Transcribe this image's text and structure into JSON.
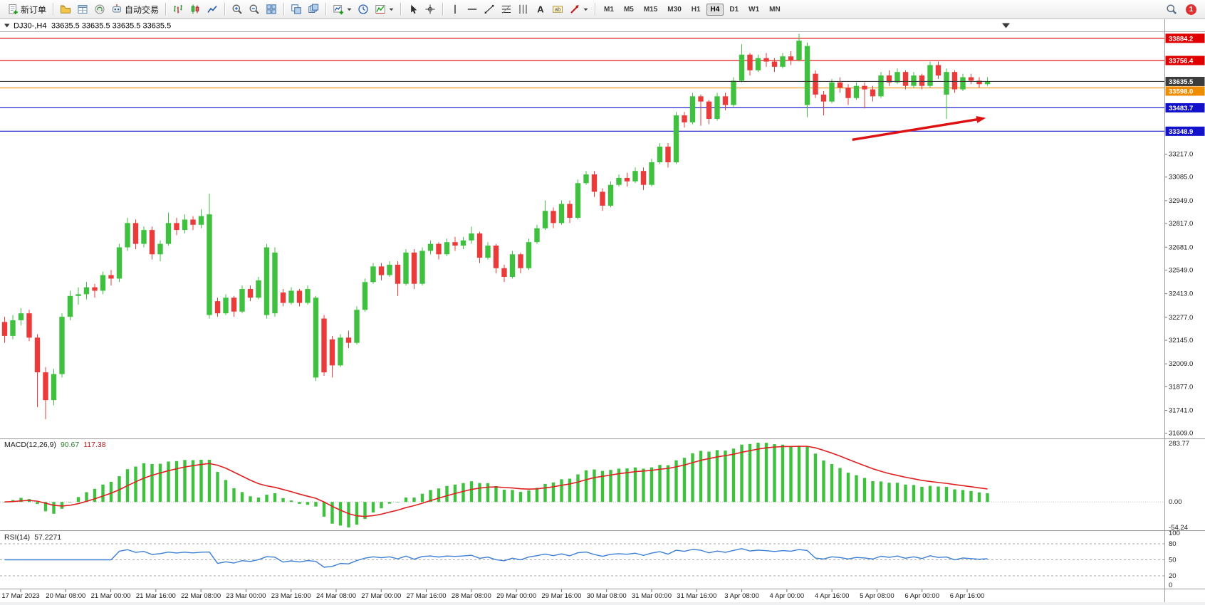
{
  "toolbar": {
    "groups": [
      {
        "items": [
          {
            "name": "new-order-button",
            "icon": "new-order",
            "label": "新订单"
          }
        ]
      },
      {
        "items": [
          {
            "name": "profiles-button",
            "icon": "profiles"
          },
          {
            "name": "data-window-button",
            "icon": "data-window"
          },
          {
            "name": "community-button",
            "icon": "community"
          },
          {
            "name": "algo-trading-button",
            "icon": "algo-trading",
            "label": "自动交易"
          }
        ]
      },
      {
        "items": [
          {
            "name": "bar-chart-button",
            "icon": "chart-bars"
          },
          {
            "name": "candle-chart-button",
            "icon": "chart-candles"
          },
          {
            "name": "line-chart-button",
            "icon": "chart-line"
          }
        ]
      },
      {
        "items": [
          {
            "name": "zoom-in-button",
            "icon": "zoom-in"
          },
          {
            "name": "zoom-out-button",
            "icon": "zoom-out"
          },
          {
            "name": "tile-windows-button",
            "icon": "tile-windows"
          }
        ]
      },
      {
        "items": [
          {
            "name": "arrange-windows-button",
            "icon": "arrange-windows"
          },
          {
            "name": "cascade-windows-button",
            "icon": "cascade-windows"
          }
        ]
      },
      {
        "items": [
          {
            "name": "new-chart-button",
            "icon": "new-chart",
            "dropdown": true
          },
          {
            "name": "period-button",
            "icon": "clock"
          },
          {
            "name": "indicators-button",
            "icon": "indicators",
            "dropdown": true
          }
        ]
      },
      {
        "items": [
          {
            "name": "cursor-button",
            "icon": "cursor"
          },
          {
            "name": "crosshair-button",
            "icon": "crosshair"
          }
        ]
      },
      {
        "items": [
          {
            "name": "vertical-line-button",
            "icon": "vertical-line"
          },
          {
            "name": "horizontal-line-button",
            "icon": "horizontal-line"
          },
          {
            "name": "trend-line-button",
            "icon": "trend-line"
          },
          {
            "name": "fibonacci-button",
            "icon": "fibonacci"
          },
          {
            "name": "cycle-lines-button",
            "icon": "cycle-lines"
          },
          {
            "name": "text-button",
            "icon": "text"
          },
          {
            "name": "text-label-button",
            "icon": "text-label"
          },
          {
            "name": "arrow-tools-button",
            "icon": "arrow-tools",
            "dropdown": true
          }
        ]
      }
    ],
    "timeframes": [
      "M1",
      "M5",
      "M15",
      "M30",
      "H1",
      "H4",
      "D1",
      "W1",
      "MN"
    ],
    "active_timeframe": "H4",
    "notification_count": "1"
  },
  "chart": {
    "symbol_period": "DJ30-,H4",
    "ohlc": "33635.5 33635.5 33635.5 33635.5"
  },
  "chart_data": {
    "type": "candlestick",
    "symbol": "DJ30-",
    "timeframe": "H4",
    "colors": {
      "up": "#3fc13f",
      "down": "#eb3a3a",
      "bid_line": "#3c3c3c"
    },
    "levels": [
      {
        "price": 33884.2,
        "label": "33884.2",
        "color": "#e00000"
      },
      {
        "price": 33756.4,
        "label": "33756.4",
        "color": "#e00000"
      },
      {
        "price": 33635.5,
        "label": "33635.5",
        "color": "#3c3c3c",
        "bid": true
      },
      {
        "price": 33598.0,
        "label": "33598.0",
        "color": "#f08c00"
      },
      {
        "price": 33483.7,
        "label": "33483.7",
        "color": "#1212cc"
      },
      {
        "price": 33348.9,
        "label": "33348.9",
        "color": "#1212cc"
      }
    ],
    "y_ticks": [
      "33217.0",
      "33085.0",
      "32949.0",
      "32817.0",
      "32681.0",
      "32549.0",
      "32413.0",
      "32277.0",
      "32145.0",
      "32009.0",
      "31877.0",
      "31741.0",
      "31609.0"
    ],
    "x_labels": [
      "17 Mar 2023",
      "20 Mar 08:00",
      "21 Mar 00:00",
      "21 Mar 16:00",
      "22 Mar 08:00",
      "23 Mar 00:00",
      "23 Mar 16:00",
      "24 Mar 08:00",
      "27 Mar 00:00",
      "27 Mar 16:00",
      "28 Mar 08:00",
      "29 Mar 00:00",
      "29 Mar 16:00",
      "30 Mar 08:00",
      "31 Mar 00:00",
      "31 Mar 16:00",
      "3 Apr 08:00",
      "4 Apr 00:00",
      "4 Apr 16:00",
      "5 Apr 08:00",
      "6 Apr 00:00",
      "6 Apr 16:00"
    ],
    "candles": [
      [
        32250,
        32280,
        32130,
        32170
      ],
      [
        32170,
        32290,
        32150,
        32260
      ],
      [
        32260,
        32330,
        32230,
        32300
      ],
      [
        32300,
        32320,
        32140,
        32160
      ],
      [
        32160,
        32180,
        31760,
        31960
      ],
      [
        31960,
        31990,
        31690,
        31800
      ],
      [
        31800,
        31980,
        31770,
        31950
      ],
      [
        31950,
        32300,
        31930,
        32280
      ],
      [
        32280,
        32430,
        32260,
        32400
      ],
      [
        32400,
        32450,
        32350,
        32410
      ],
      [
        32410,
        32480,
        32380,
        32450
      ],
      [
        32450,
        32470,
        32390,
        32430
      ],
      [
        32430,
        32540,
        32410,
        32520
      ],
      [
        32520,
        32550,
        32460,
        32500
      ],
      [
        32500,
        32700,
        32480,
        32680
      ],
      [
        32680,
        32850,
        32660,
        32820
      ],
      [
        32820,
        32840,
        32670,
        32700
      ],
      [
        32700,
        32800,
        32680,
        32780
      ],
      [
        32780,
        32800,
        32610,
        32640
      ],
      [
        32640,
        32720,
        32600,
        32700
      ],
      [
        32700,
        32880,
        32690,
        32820
      ],
      [
        32820,
        32850,
        32750,
        32780
      ],
      [
        32780,
        32870,
        32760,
        32840
      ],
      [
        32840,
        32860,
        32780,
        32810
      ],
      [
        32810,
        32900,
        32790,
        32860
      ],
      [
        32290,
        32990,
        32270,
        32870
      ],
      [
        32370,
        32390,
        32280,
        32300
      ],
      [
        32300,
        32410,
        32290,
        32390
      ],
      [
        32390,
        32400,
        32280,
        32310
      ],
      [
        32310,
        32460,
        32300,
        32440
      ],
      [
        32440,
        32460,
        32370,
        32390
      ],
      [
        32390,
        32510,
        32380,
        32490
      ],
      [
        32290,
        32700,
        32270,
        32680
      ],
      [
        32300,
        32680,
        32280,
        32650
      ],
      [
        32420,
        32440,
        32340,
        32360
      ],
      [
        32360,
        32450,
        32350,
        32430
      ],
      [
        32430,
        32440,
        32340,
        32360
      ],
      [
        32360,
        32460,
        32350,
        32440
      ],
      [
        31930,
        32400,
        31910,
        32390
      ],
      [
        32270,
        32290,
        31940,
        31960
      ],
      [
        32150,
        32170,
        31930,
        32000
      ],
      [
        32000,
        32180,
        31990,
        32160
      ],
      [
        32160,
        32200,
        32100,
        32130
      ],
      [
        32130,
        32340,
        32120,
        32320
      ],
      [
        32320,
        32500,
        32310,
        32480
      ],
      [
        32480,
        32590,
        32470,
        32570
      ],
      [
        32570,
        32590,
        32490,
        32520
      ],
      [
        32520,
        32600,
        32510,
        32580
      ],
      [
        32580,
        32600,
        32400,
        32470
      ],
      [
        32470,
        32670,
        32460,
        32650
      ],
      [
        32650,
        32670,
        32440,
        32470
      ],
      [
        32470,
        32680,
        32460,
        32660
      ],
      [
        32660,
        32720,
        32640,
        32700
      ],
      [
        32700,
        32710,
        32610,
        32640
      ],
      [
        32640,
        32730,
        32630,
        32710
      ],
      [
        32710,
        32740,
        32660,
        32690
      ],
      [
        32690,
        32740,
        32670,
        32720
      ],
      [
        32720,
        32800,
        32700,
        32760
      ],
      [
        32760,
        32770,
        32590,
        32620
      ],
      [
        32620,
        32710,
        32610,
        32690
      ],
      [
        32690,
        32700,
        32530,
        32560
      ],
      [
        32560,
        32580,
        32480,
        32510
      ],
      [
        32510,
        32660,
        32500,
        32640
      ],
      [
        32640,
        32650,
        32530,
        32560
      ],
      [
        32560,
        32730,
        32550,
        32710
      ],
      [
        32710,
        32810,
        32700,
        32790
      ],
      [
        32790,
        32950,
        32780,
        32890
      ],
      [
        32890,
        32910,
        32790,
        32820
      ],
      [
        32820,
        32950,
        32810,
        32930
      ],
      [
        32930,
        32950,
        32820,
        32850
      ],
      [
        32850,
        33070,
        32840,
        33050
      ],
      [
        33050,
        33120,
        33040,
        33100
      ],
      [
        33100,
        33120,
        32970,
        33000
      ],
      [
        33000,
        33020,
        32890,
        32920
      ],
      [
        32920,
        33060,
        32910,
        33040
      ],
      [
        33040,
        33100,
        33030,
        33080
      ],
      [
        33080,
        33110,
        33030,
        33060
      ],
      [
        33060,
        33140,
        33050,
        33120
      ],
      [
        33120,
        33140,
        33010,
        33040
      ],
      [
        33040,
        33190,
        33030,
        33170
      ],
      [
        33170,
        33280,
        33160,
        33260
      ],
      [
        33260,
        33280,
        33140,
        33170
      ],
      [
        33170,
        33460,
        33160,
        33440
      ],
      [
        33440,
        33460,
        33370,
        33400
      ],
      [
        33400,
        33570,
        33390,
        33550
      ],
      [
        33550,
        33560,
        33380,
        33520
      ],
      [
        33520,
        33530,
        33390,
        33420
      ],
      [
        33420,
        33570,
        33410,
        33550
      ],
      [
        33550,
        33570,
        33470,
        33500
      ],
      [
        33500,
        33660,
        33490,
        33640
      ],
      [
        33640,
        33850,
        33630,
        33790
      ],
      [
        33790,
        33800,
        33670,
        33700
      ],
      [
        33700,
        33790,
        33690,
        33770
      ],
      [
        33770,
        33800,
        33720,
        33750
      ],
      [
        33750,
        33770,
        33690,
        33720
      ],
      [
        33720,
        33800,
        33710,
        33780
      ],
      [
        33780,
        33810,
        33730,
        33760
      ],
      [
        33760,
        33910,
        33750,
        33870
      ],
      [
        33500,
        33860,
        33430,
        33840
      ],
      [
        33680,
        33700,
        33540,
        33560
      ],
      [
        33560,
        33580,
        33440,
        33520
      ],
      [
        33520,
        33650,
        33510,
        33630
      ],
      [
        33630,
        33660,
        33570,
        33600
      ],
      [
        33600,
        33620,
        33500,
        33540
      ],
      [
        33540,
        33630,
        33530,
        33610
      ],
      [
        33610,
        33630,
        33480,
        33590
      ],
      [
        33590,
        33610,
        33520,
        33550
      ],
      [
        33550,
        33690,
        33540,
        33670
      ],
      [
        33670,
        33700,
        33610,
        33630
      ],
      [
        33630,
        33710,
        33620,
        33690
      ],
      [
        33690,
        33700,
        33590,
        33610
      ],
      [
        33610,
        33690,
        33600,
        33670
      ],
      [
        33670,
        33680,
        33590,
        33610
      ],
      [
        33610,
        33750,
        33600,
        33730
      ],
      [
        33730,
        33750,
        33650,
        33670
      ],
      [
        33560,
        33710,
        33420,
        33690
      ],
      [
        33690,
        33700,
        33570,
        33590
      ],
      [
        33590,
        33680,
        33580,
        33660
      ],
      [
        33660,
        33680,
        33620,
        33640
      ],
      [
        33640,
        33660,
        33600,
        33620
      ],
      [
        33620,
        33660,
        33610,
        33635.5
      ]
    ],
    "arrow": {
      "from_index": 103.5,
      "from_price": 33300,
      "to_index": 119.8,
      "to_price": 33425,
      "color": "#dd1111"
    },
    "macd": {
      "label": "MACD(12,26,9)",
      "main_value": "90.67",
      "signal_value": "117.38",
      "fast": 12,
      "slow": 26,
      "signal": 9,
      "axis_labels": {
        "top": "283.77",
        "zero": "0.00",
        "bottom": "-54.24"
      },
      "histogram_color": "#3fc13f",
      "signal_color": "#e02020"
    },
    "rsi": {
      "label": "RSI(14)",
      "value": "57.2271",
      "period": 14,
      "levels": [
        80,
        50,
        20
      ],
      "axis_labels": [
        {
          "v": 100,
          "t": "100"
        },
        {
          "v": 80,
          "t": "80"
        },
        {
          "v": 50,
          "t": "50"
        },
        {
          "v": 20,
          "t": "20"
        },
        {
          "v": 0,
          "t": "0"
        }
      ],
      "line_color": "#3c7fd6"
    }
  }
}
